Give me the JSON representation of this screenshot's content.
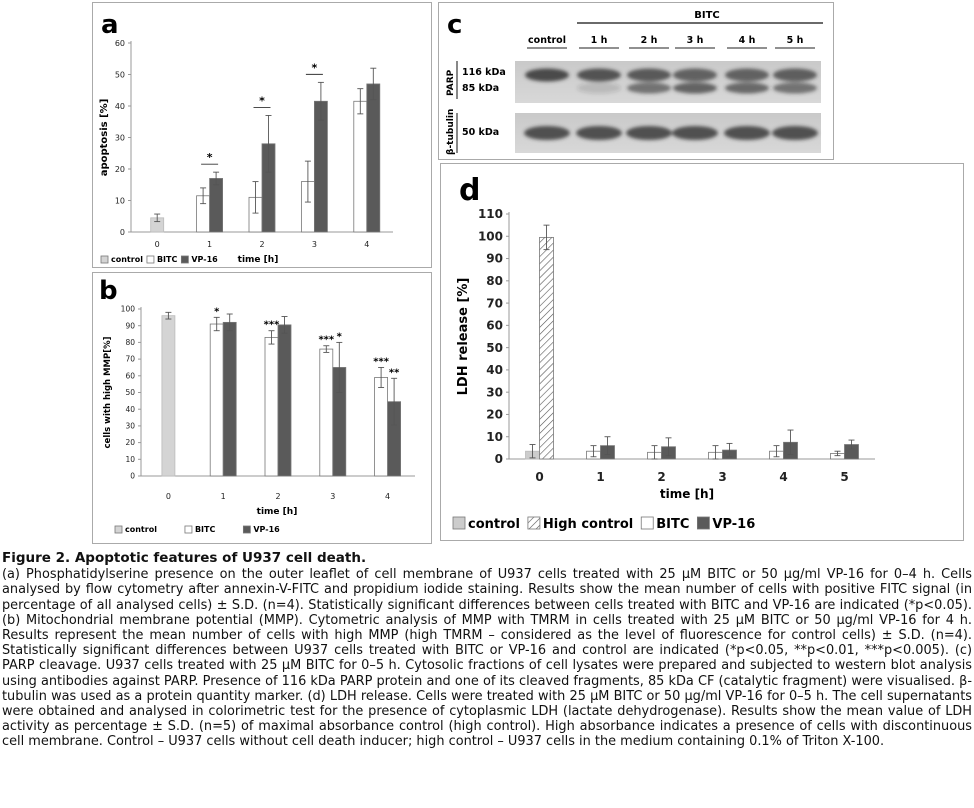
{
  "panels": {
    "a": {
      "letter": "a"
    },
    "b": {
      "letter": "b"
    },
    "c": {
      "letter": "c"
    },
    "d": {
      "letter": "d"
    }
  },
  "chart_data": [
    {
      "panel": "a",
      "type": "bar",
      "ylabel": "apoptosis [%]",
      "xlabel": "time [h]",
      "ylim": [
        0,
        60
      ],
      "yticks": [
        0,
        10,
        20,
        30,
        40,
        50,
        60
      ],
      "categories": [
        "0",
        "1",
        "2",
        "3",
        "4"
      ],
      "legend": [
        "control",
        "BITC",
        "VP-16"
      ],
      "legend_position": "bottom",
      "series": [
        {
          "name": "control",
          "color": "#d4d4d4",
          "values": [
            4.5,
            null,
            null,
            null,
            null
          ],
          "errors": [
            1.2,
            null,
            null,
            null,
            null
          ]
        },
        {
          "name": "BITC",
          "color": "#ffffff",
          "values": [
            null,
            11.5,
            11,
            16,
            41.5
          ],
          "errors": [
            null,
            2.5,
            5,
            6.5,
            4
          ]
        },
        {
          "name": "VP-16",
          "color": "#5a5a5a",
          "values": [
            null,
            17,
            28,
            41.5,
            47
          ],
          "errors": [
            null,
            2,
            9,
            6,
            5
          ]
        }
      ],
      "annotations": [
        {
          "category": "1",
          "text": "*"
        },
        {
          "category": "2",
          "text": "*"
        },
        {
          "category": "3",
          "text": "*"
        }
      ]
    },
    {
      "panel": "b",
      "type": "bar",
      "ylabel": "cells with high MMP[%]",
      "xlabel": "time [h]",
      "ylim": [
        0,
        100
      ],
      "yticks": [
        0,
        10,
        20,
        30,
        40,
        50,
        60,
        70,
        80,
        90,
        100
      ],
      "categories": [
        "0",
        "1",
        "2",
        "3",
        "4"
      ],
      "legend": [
        "control",
        "BITC",
        "VP-16"
      ],
      "legend_position": "bottom",
      "series": [
        {
          "name": "control",
          "color": "#d4d4d4",
          "values": [
            96,
            null,
            null,
            null,
            null
          ],
          "errors": [
            2,
            null,
            null,
            null,
            null
          ]
        },
        {
          "name": "BITC",
          "color": "#ffffff",
          "values": [
            null,
            91,
            83,
            76,
            59
          ],
          "errors": [
            null,
            4,
            4,
            2,
            6
          ]
        },
        {
          "name": "VP-16",
          "color": "#5a5a5a",
          "values": [
            null,
            92,
            90.5,
            65,
            44.5
          ],
          "errors": [
            null,
            5,
            5,
            15,
            14
          ]
        }
      ],
      "annotations": [
        {
          "category": "1",
          "series": "BITC",
          "text": "*"
        },
        {
          "category": "2",
          "series": "BITC",
          "text": "***"
        },
        {
          "category": "3",
          "series": "BITC",
          "text": "***"
        },
        {
          "category": "3",
          "series": "VP-16",
          "text": "*"
        },
        {
          "category": "4",
          "series": "BITC",
          "text": "***"
        },
        {
          "category": "4",
          "series": "VP-16",
          "text": "**"
        }
      ]
    },
    {
      "panel": "d",
      "type": "bar",
      "ylabel": "LDH release [%]",
      "xlabel": "time [h]",
      "ylim": [
        0,
        110
      ],
      "yticks": [
        0,
        10,
        20,
        30,
        40,
        50,
        60,
        70,
        80,
        90,
        100,
        110
      ],
      "categories": [
        "0",
        "1",
        "2",
        "3",
        "4",
        "5"
      ],
      "legend": [
        "control",
        "High control",
        "BITC",
        "VP-16"
      ],
      "legend_position": "bottom",
      "series": [
        {
          "name": "control",
          "color": "#cccccc",
          "values": [
            3.5,
            null,
            null,
            null,
            null,
            null
          ],
          "errors": [
            3,
            null,
            null,
            null,
            null,
            null
          ]
        },
        {
          "name": "High control",
          "color": "hatched",
          "values": [
            99.5,
            null,
            null,
            null,
            null,
            null
          ],
          "errors": [
            5.5,
            null,
            null,
            null,
            null,
            null
          ]
        },
        {
          "name": "BITC",
          "color": "#ffffff",
          "values": [
            null,
            3.5,
            3,
            3,
            3.5,
            2.5
          ],
          "errors": [
            null,
            2.5,
            3,
            3,
            2.5,
            1
          ]
        },
        {
          "name": "VP-16",
          "color": "#5a5a5a",
          "values": [
            null,
            6,
            5.5,
            4,
            7.5,
            6.5
          ],
          "errors": [
            null,
            4,
            4,
            3,
            5.5,
            2
          ]
        }
      ]
    }
  ],
  "western_blot": {
    "group_label": "BITC",
    "lanes": [
      "control",
      "1 h",
      "2 h",
      "3 h",
      "4 h",
      "5 h"
    ],
    "rows": [
      {
        "protein": "PARP",
        "markers": [
          "116 kDa",
          "85 kDa"
        ]
      },
      {
        "protein": "β-tubulin",
        "markers": [
          "50 kDa"
        ]
      }
    ]
  },
  "caption": {
    "title": "Figure 2. Apoptotic features of U937 cell death.",
    "p1": "(a) Phosphatidylserine presence on the outer leaflet of cell membrane of U937 cells treated with 25 µM BITC or 50 µg/ml VP-16 for 0–4 h. Cells analysed by flow cytometry after annexin-V-FITC and propidium iodide staining. Results show the mean number of cells with positive FITC signal (in percentage of all analysed cells) ± S.D. (n=4). Statistically significant differences between cells treated with BITC and VP-16 are indicated (*p<0.05). (b) Mitochondrial membrane potential (MMP). Cytometric analysis of MMP with TMRM in cells treated with 25 µM BITC or 50 µg/ml VP-16 for 4 h. Results represent the mean number of cells with high MMP (high TMRM – considered as the level of fluorescence for control cells) ± S.D. (n=4). Statistically significant differences between U937 cells treated with BITC or VP-16 and control are indicated (*p<0.05, **p<0.01, ***p<0.005). (c) PARP cleavage. U937 cells treated with 25 µM BITC for 0–5 h. Cytosolic fractions of cell lysates were prepared and subjected to western blot analysis using antibodies against PARP. Presence of 116 kDa PARP protein and one of its cleaved fragments, 85 kDa CF (catalytic fragment) were visualised. β-tubulin was used as a protein quantity marker. (d) LDH release. Cells were treated with 25 µM BITC or 50 µg/ml VP-16 for 0–5 h. The cell supernatants were obtained and analysed in colorimetric test for the presence of cytoplasmic LDH (lactate dehydrogenase). Results show the mean value of LDH activity as percentage ± S.D. (n=5) of maximal absorbance control (high control). High absorbance indicates a presence of cells with discontinuous cell membrane. Control – U937 cells without cell death inducer; high control – U937 cells in the medium containing 0.1% of Triton X-100."
  }
}
